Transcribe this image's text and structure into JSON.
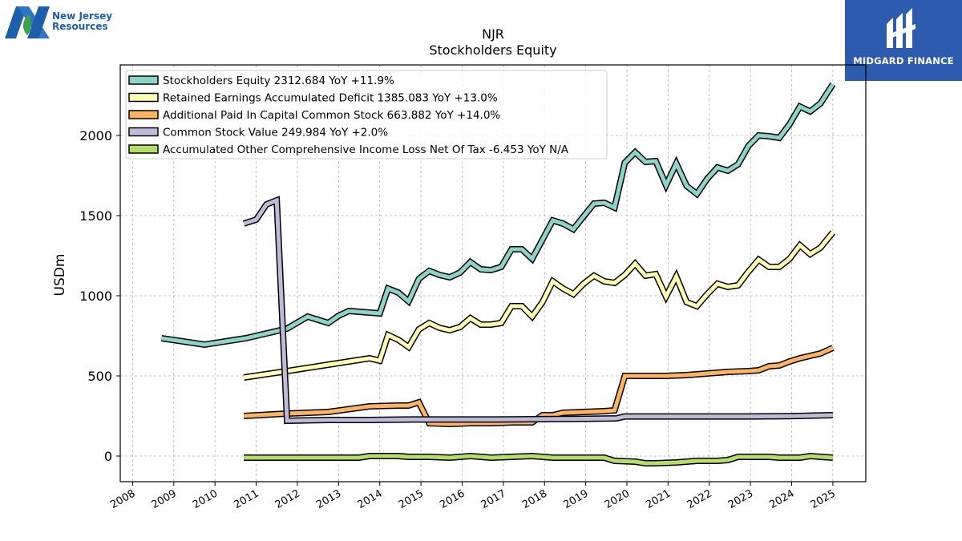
{
  "logos": {
    "left_name": "New Jersey\nResources",
    "right_name": "MIDGARD FINANCE"
  },
  "colors": {
    "equity": "#8dd3c7",
    "retained": "#ffffb3",
    "apic": "#fdb462",
    "common": "#bebada",
    "aoci": "#b3de69",
    "grid": "#b0b0b0",
    "brand_blue": "#2d5cae"
  },
  "chart_data": {
    "type": "line",
    "title": "NJR",
    "subtitle": "Stockholders  Equity",
    "xlabel": "",
    "ylabel": "USDm",
    "xlim": [
      2007.7,
      2025.8
    ],
    "ylim": [
      -160,
      2440
    ],
    "xticks": [
      "2008",
      "2009",
      "2010",
      "2011",
      "2012",
      "2013",
      "2014",
      "2015",
      "2016",
      "2017",
      "2018",
      "2019",
      "2020",
      "2021",
      "2022",
      "2023",
      "2024",
      "2025"
    ],
    "yticks": [
      "0",
      "500",
      "1000",
      "1500",
      "2000"
    ],
    "grid": true,
    "legend_position": "top-left",
    "series": [
      {
        "name": "Stockholders Equity  2312.684 YoY +11.9%",
        "color": "#8dd3c7",
        "points": [
          [
            2008.7,
            735
          ],
          [
            2009.75,
            695
          ],
          [
            2010.75,
            735
          ],
          [
            2011.75,
            795
          ],
          [
            2012.25,
            870
          ],
          [
            2012.75,
            830
          ],
          [
            2013.0,
            875
          ],
          [
            2013.25,
            905
          ],
          [
            2013.75,
            895
          ],
          [
            2014.0,
            890
          ],
          [
            2014.2,
            1045
          ],
          [
            2014.45,
            1020
          ],
          [
            2014.7,
            965
          ],
          [
            2014.95,
            1105
          ],
          [
            2015.2,
            1155
          ],
          [
            2015.45,
            1130
          ],
          [
            2015.7,
            1115
          ],
          [
            2015.95,
            1145
          ],
          [
            2016.2,
            1210
          ],
          [
            2016.45,
            1165
          ],
          [
            2016.7,
            1160
          ],
          [
            2016.95,
            1180
          ],
          [
            2017.2,
            1290
          ],
          [
            2017.45,
            1290
          ],
          [
            2017.7,
            1230
          ],
          [
            2017.95,
            1350
          ],
          [
            2018.2,
            1470
          ],
          [
            2018.45,
            1450
          ],
          [
            2018.7,
            1415
          ],
          [
            2018.95,
            1495
          ],
          [
            2019.2,
            1575
          ],
          [
            2019.45,
            1580
          ],
          [
            2019.7,
            1550
          ],
          [
            2019.95,
            1830
          ],
          [
            2020.2,
            1895
          ],
          [
            2020.45,
            1835
          ],
          [
            2020.7,
            1840
          ],
          [
            2020.95,
            1690
          ],
          [
            2021.2,
            1825
          ],
          [
            2021.45,
            1685
          ],
          [
            2021.7,
            1635
          ],
          [
            2021.95,
            1730
          ],
          [
            2022.2,
            1800
          ],
          [
            2022.45,
            1780
          ],
          [
            2022.7,
            1820
          ],
          [
            2022.95,
            1935
          ],
          [
            2023.2,
            2000
          ],
          [
            2023.45,
            1995
          ],
          [
            2023.7,
            1985
          ],
          [
            2023.95,
            2070
          ],
          [
            2024.2,
            2180
          ],
          [
            2024.45,
            2150
          ],
          [
            2024.7,
            2200
          ],
          [
            2025.0,
            2320
          ]
        ]
      },
      {
        "name": "Retained Earnings Accumulated Deficit  1385.083 YoY +13.0%",
        "color": "#ffffb3",
        "points": [
          [
            2010.7,
            490
          ],
          [
            2011.75,
            530
          ],
          [
            2012.75,
            570
          ],
          [
            2013.75,
            610
          ],
          [
            2014.0,
            595
          ],
          [
            2014.2,
            755
          ],
          [
            2014.45,
            725
          ],
          [
            2014.7,
            680
          ],
          [
            2014.95,
            790
          ],
          [
            2015.2,
            830
          ],
          [
            2015.45,
            800
          ],
          [
            2015.7,
            785
          ],
          [
            2015.95,
            805
          ],
          [
            2016.2,
            860
          ],
          [
            2016.45,
            820
          ],
          [
            2016.7,
            820
          ],
          [
            2016.95,
            830
          ],
          [
            2017.2,
            935
          ],
          [
            2017.45,
            935
          ],
          [
            2017.7,
            870
          ],
          [
            2017.95,
            960
          ],
          [
            2018.2,
            1090
          ],
          [
            2018.45,
            1045
          ],
          [
            2018.7,
            1010
          ],
          [
            2018.95,
            1075
          ],
          [
            2019.2,
            1125
          ],
          [
            2019.45,
            1090
          ],
          [
            2019.7,
            1080
          ],
          [
            2019.95,
            1130
          ],
          [
            2020.2,
            1200
          ],
          [
            2020.45,
            1125
          ],
          [
            2020.7,
            1135
          ],
          [
            2020.95,
            995
          ],
          [
            2021.2,
            1120
          ],
          [
            2021.45,
            960
          ],
          [
            2021.7,
            935
          ],
          [
            2021.95,
            1010
          ],
          [
            2022.2,
            1075
          ],
          [
            2022.45,
            1055
          ],
          [
            2022.7,
            1065
          ],
          [
            2022.95,
            1150
          ],
          [
            2023.2,
            1225
          ],
          [
            2023.45,
            1180
          ],
          [
            2023.7,
            1180
          ],
          [
            2023.95,
            1230
          ],
          [
            2024.2,
            1315
          ],
          [
            2024.45,
            1260
          ],
          [
            2024.7,
            1300
          ],
          [
            2025.0,
            1395
          ]
        ]
      },
      {
        "name": "Additional Paid In Capital Common Stock  663.882 YoY +14.0%",
        "color": "#fdb462",
        "points": [
          [
            2010.7,
            250
          ],
          [
            2011.75,
            265
          ],
          [
            2012.75,
            275
          ],
          [
            2013.75,
            310
          ],
          [
            2014.45,
            315
          ],
          [
            2014.7,
            315
          ],
          [
            2014.95,
            335
          ],
          [
            2015.2,
            205
          ],
          [
            2015.7,
            200
          ],
          [
            2016.2,
            205
          ],
          [
            2016.7,
            205
          ],
          [
            2017.2,
            210
          ],
          [
            2017.7,
            210
          ],
          [
            2017.95,
            255
          ],
          [
            2018.2,
            255
          ],
          [
            2018.45,
            270
          ],
          [
            2018.95,
            275
          ],
          [
            2019.45,
            280
          ],
          [
            2019.7,
            285
          ],
          [
            2019.95,
            500
          ],
          [
            2020.45,
            500
          ],
          [
            2020.95,
            500
          ],
          [
            2021.45,
            505
          ],
          [
            2021.95,
            515
          ],
          [
            2022.45,
            525
          ],
          [
            2022.95,
            530
          ],
          [
            2023.2,
            535
          ],
          [
            2023.45,
            560
          ],
          [
            2023.7,
            565
          ],
          [
            2023.95,
            590
          ],
          [
            2024.2,
            610
          ],
          [
            2024.45,
            625
          ],
          [
            2024.7,
            640
          ],
          [
            2025.0,
            675
          ]
        ]
      },
      {
        "name": "Common Stock Value  249.984 YoY +2.0%",
        "color": "#bebada",
        "points": [
          [
            2010.7,
            1450
          ],
          [
            2011.0,
            1475
          ],
          [
            2011.25,
            1570
          ],
          [
            2011.5,
            1595
          ],
          [
            2011.75,
            220
          ],
          [
            2012.75,
            225
          ],
          [
            2013.75,
            225
          ],
          [
            2014.75,
            228
          ],
          [
            2015.75,
            228
          ],
          [
            2016.75,
            228
          ],
          [
            2017.75,
            230
          ],
          [
            2018.75,
            232
          ],
          [
            2019.75,
            235
          ],
          [
            2019.95,
            247
          ],
          [
            2020.95,
            247
          ],
          [
            2021.95,
            247
          ],
          [
            2022.95,
            247
          ],
          [
            2023.95,
            249
          ],
          [
            2025.0,
            255
          ]
        ]
      },
      {
        "name": "Accumulated Other Comprehensive Income Loss Net Of Tax  -6.453 YoY N/A",
        "color": "#b3de69",
        "points": [
          [
            2010.7,
            -10
          ],
          [
            2011.75,
            -10
          ],
          [
            2012.75,
            -10
          ],
          [
            2013.5,
            -10
          ],
          [
            2013.75,
            0
          ],
          [
            2014.45,
            0
          ],
          [
            2014.7,
            -5
          ],
          [
            2015.2,
            -5
          ],
          [
            2015.7,
            -10
          ],
          [
            2016.2,
            0
          ],
          [
            2016.7,
            -10
          ],
          [
            2017.2,
            -5
          ],
          [
            2017.7,
            0
          ],
          [
            2018.2,
            -10
          ],
          [
            2018.7,
            -10
          ],
          [
            2019.2,
            -10
          ],
          [
            2019.45,
            -10
          ],
          [
            2019.7,
            -30
          ],
          [
            2020.2,
            -35
          ],
          [
            2020.45,
            -45
          ],
          [
            2020.7,
            -45
          ],
          [
            2021.2,
            -40
          ],
          [
            2021.45,
            -35
          ],
          [
            2021.7,
            -30
          ],
          [
            2022.2,
            -30
          ],
          [
            2022.45,
            -25
          ],
          [
            2022.7,
            -5
          ],
          [
            2023.2,
            -5
          ],
          [
            2023.45,
            -5
          ],
          [
            2023.7,
            -10
          ],
          [
            2024.2,
            -10
          ],
          [
            2024.45,
            0
          ],
          [
            2024.7,
            -5
          ],
          [
            2025.0,
            -10
          ]
        ]
      }
    ]
  }
}
